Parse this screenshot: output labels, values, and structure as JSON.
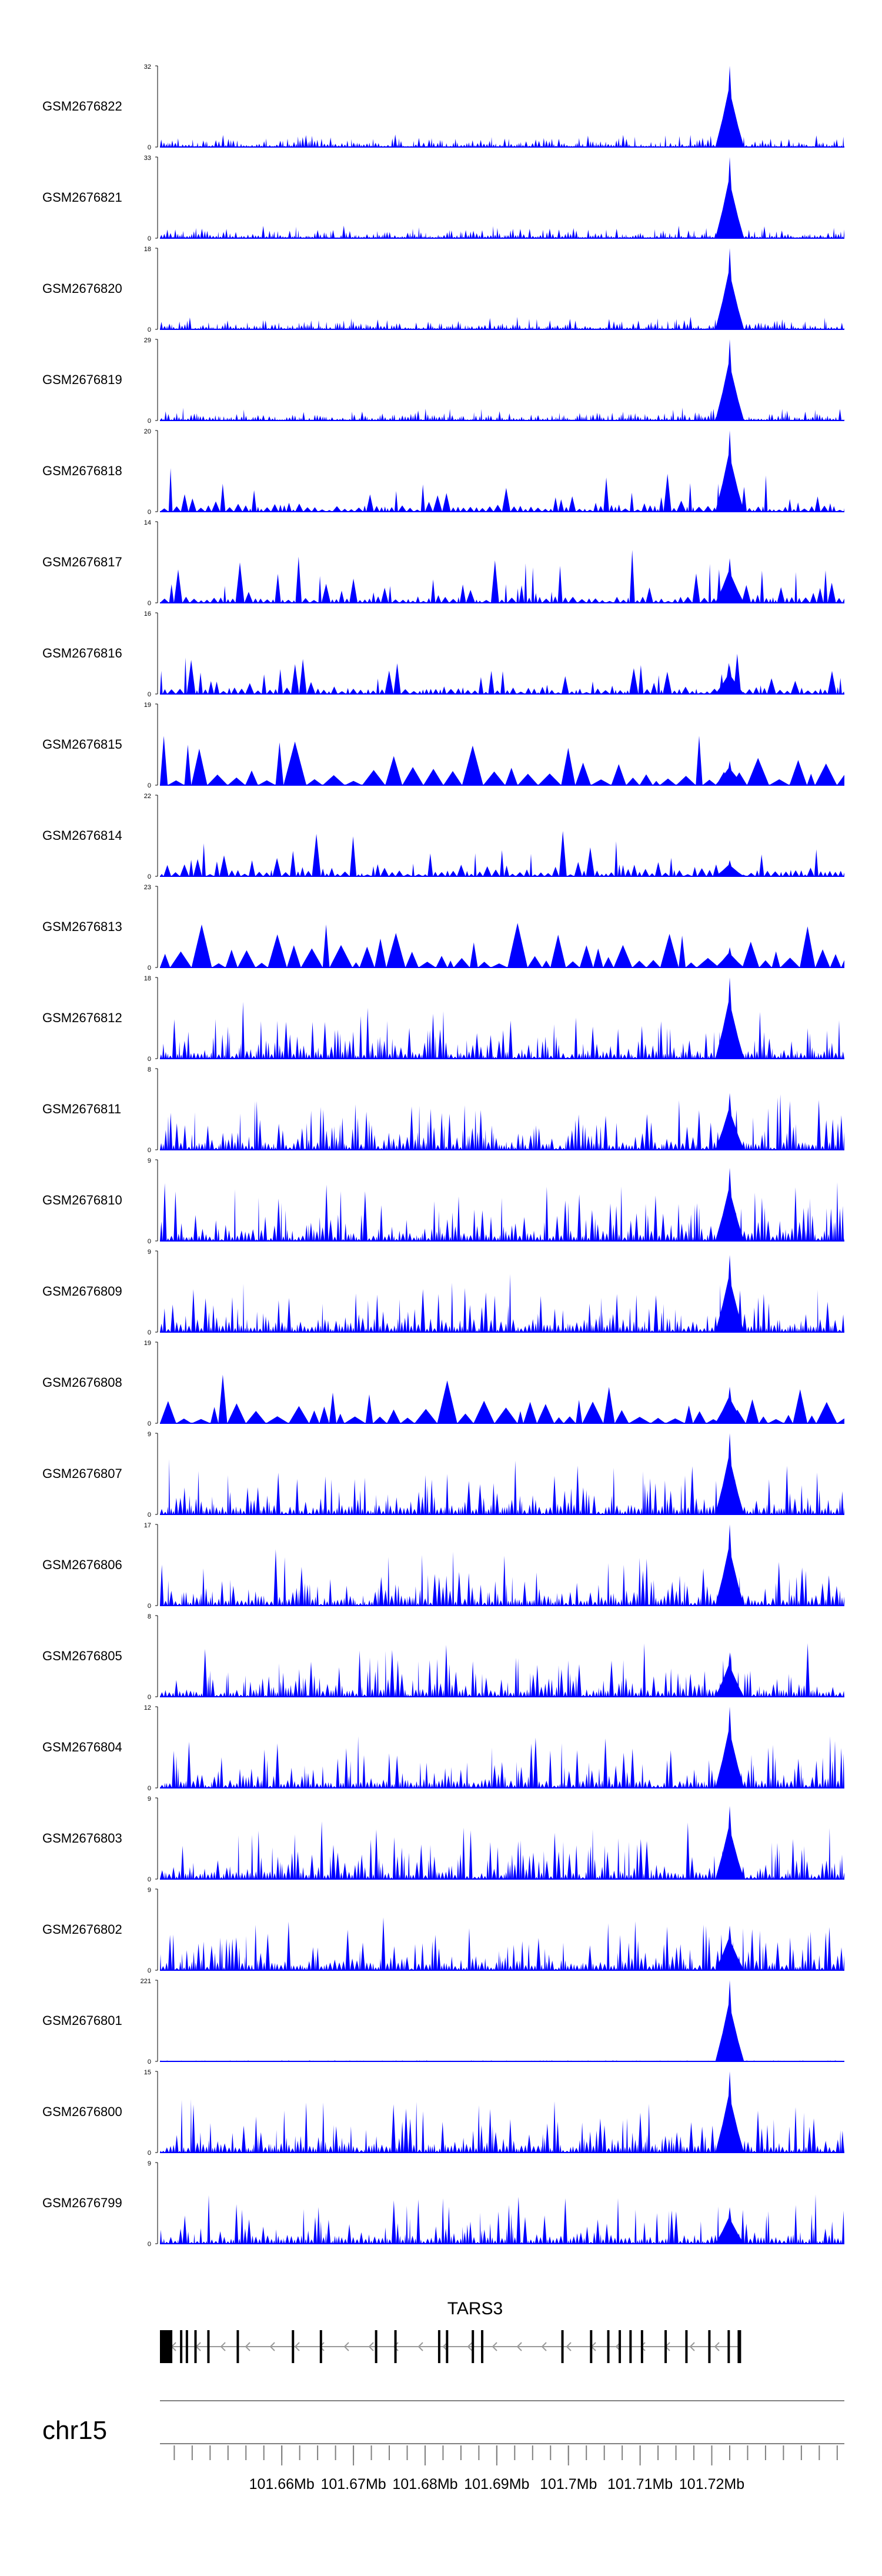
{
  "chart_data": {
    "type": "area",
    "genome_browser": true,
    "chromosome": "chr15",
    "x_range_mb": [
      101.643,
      101.7385
    ],
    "axis": {
      "ticks_mb": [
        101.645,
        101.6475,
        101.65,
        101.6525,
        101.655,
        101.6575,
        101.66,
        101.6625,
        101.665,
        101.6675,
        101.67,
        101.6725,
        101.675,
        101.6775,
        101.68,
        101.6825,
        101.685,
        101.6875,
        101.69,
        101.6925,
        101.695,
        101.6975,
        101.7,
        101.7025,
        101.705,
        101.7075,
        101.71,
        101.7125,
        101.715,
        101.7175,
        101.72,
        101.7225,
        101.725,
        101.7275,
        101.73,
        101.7325,
        101.735,
        101.7375
      ],
      "labels": [
        {
          "mb": 101.66,
          "text": "101.66Mb"
        },
        {
          "mb": 101.67,
          "text": "101.67Mb"
        },
        {
          "mb": 101.68,
          "text": "101.68Mb"
        },
        {
          "mb": 101.69,
          "text": "101.69Mb"
        },
        {
          "mb": 101.7,
          "text": "101.7Mb"
        },
        {
          "mb": 101.71,
          "text": "101.71Mb"
        },
        {
          "mb": 101.72,
          "text": "101.72Mb"
        }
      ]
    },
    "gene": {
      "name": "TARS3",
      "strand": "-",
      "start_mb": 101.643,
      "end_mb": 101.7238,
      "exons_mb": [
        101.643,
        101.6444,
        101.6458,
        101.6466,
        101.6478,
        101.6496,
        101.6537,
        101.6614,
        101.6653,
        101.673,
        101.6757,
        101.6818,
        101.6829,
        101.6865,
        101.6878,
        101.699,
        101.703,
        101.7054,
        101.707,
        101.7085,
        101.7101,
        101.7134,
        101.7163,
        101.7195,
        101.7222,
        101.7236
      ]
    },
    "tracks": [
      {
        "name": "GSM2676822",
        "ymax": 32,
        "style": "dense",
        "peak_height": 1.0
      },
      {
        "name": "GSM2676821",
        "ymax": 33,
        "style": "dense",
        "peak_height": 1.0
      },
      {
        "name": "GSM2676820",
        "ymax": 18,
        "style": "dense",
        "peak_height": 1.0
      },
      {
        "name": "GSM2676819",
        "ymax": 29,
        "style": "dense",
        "peak_height": 1.0
      },
      {
        "name": "GSM2676818",
        "ymax": 20,
        "style": "sparse",
        "peak_height": 1.0
      },
      {
        "name": "GSM2676817",
        "ymax": 14,
        "style": "sparse",
        "peak_height": 0.55
      },
      {
        "name": "GSM2676816",
        "ymax": 16,
        "style": "sparse",
        "peak_height": 0.35
      },
      {
        "name": "GSM2676815",
        "ymax": 19,
        "style": "triangle",
        "peak_height": 0.3
      },
      {
        "name": "GSM2676814",
        "ymax": 22,
        "style": "sparse",
        "peak_height": 0.2
      },
      {
        "name": "GSM2676813",
        "ymax": 23,
        "style": "triangle",
        "peak_height": 0.25
      },
      {
        "name": "GSM2676812",
        "ymax": 18,
        "style": "mixed",
        "peak_height": 1.0
      },
      {
        "name": "GSM2676811",
        "ymax": 8,
        "style": "mixed",
        "peak_height": 0.7
      },
      {
        "name": "GSM2676810",
        "ymax": 9,
        "style": "mixed",
        "peak_height": 0.9
      },
      {
        "name": "GSM2676809",
        "ymax": 9,
        "style": "mixed",
        "peak_height": 0.95
      },
      {
        "name": "GSM2676808",
        "ymax": 19,
        "style": "triangle",
        "peak_height": 0.45
      },
      {
        "name": "GSM2676807",
        "ymax": 9,
        "style": "mixed",
        "peak_height": 1.0
      },
      {
        "name": "GSM2676806",
        "ymax": 17,
        "style": "mixed",
        "peak_height": 1.0
      },
      {
        "name": "GSM2676805",
        "ymax": 8,
        "style": "mixed",
        "peak_height": 0.55
      },
      {
        "name": "GSM2676804",
        "ymax": 12,
        "style": "mixed",
        "peak_height": 1.0
      },
      {
        "name": "GSM2676803",
        "ymax": 9,
        "style": "mixed",
        "peak_height": 0.9
      },
      {
        "name": "GSM2676802",
        "ymax": 9,
        "style": "mixed",
        "peak_height": 0.55
      },
      {
        "name": "GSM2676801",
        "ymax": 221,
        "style": "flat",
        "peak_height": 1.0
      },
      {
        "name": "GSM2676800",
        "ymax": 15,
        "style": "mixed",
        "peak_height": 1.0
      },
      {
        "name": "GSM2676799",
        "ymax": 9,
        "style": "mixed",
        "peak_height": 0.45
      }
    ],
    "colors": {
      "signal": "#0000ff",
      "text": "#000000",
      "axis": "#808080",
      "gene": "#000000"
    },
    "peak_region_mb": [
      101.7205,
      101.7245
    ]
  }
}
